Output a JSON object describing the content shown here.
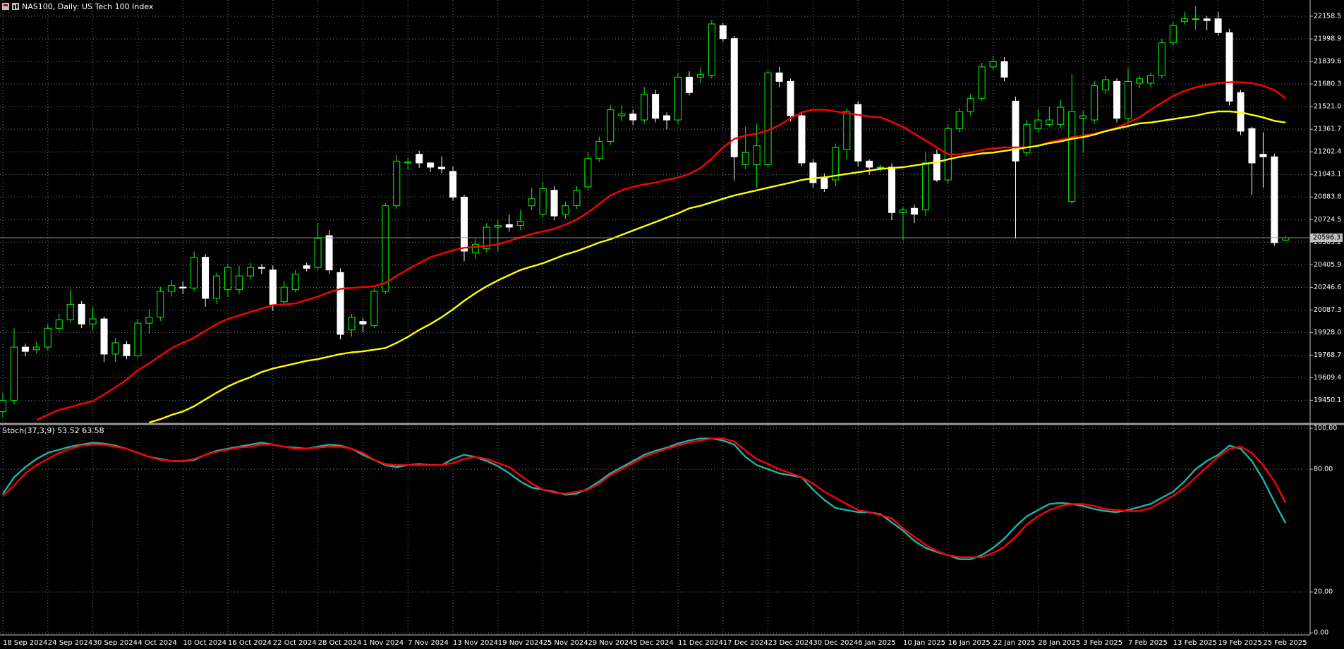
{
  "chart_data": [
    {
      "type": "candlestick",
      "title": "NAS100, Daily: US Tech 100 Index",
      "current_price": 20596.3,
      "up_color": "#00ff00",
      "down_color": "#ffffff",
      "grid": true,
      "grid_color": "#6e7b8b",
      "categories": [
        "18 Sep 2024",
        null,
        null,
        null,
        "24 Sep 2024",
        null,
        null,
        null,
        "30 Sep 2024",
        null,
        null,
        null,
        "4 Oct 2024",
        null,
        null,
        null,
        "10 Oct 2024",
        null,
        null,
        null,
        "16 Oct 2024",
        null,
        null,
        null,
        "22 Oct 2024",
        null,
        null,
        null,
        "28 Oct 2024",
        null,
        null,
        null,
        "1 Nov 2024",
        null,
        null,
        null,
        "7 Nov 2024",
        null,
        null,
        null,
        "13 Nov 2024",
        null,
        null,
        null,
        "19 Nov 2024",
        null,
        null,
        null,
        "25 Nov 2024",
        null,
        null,
        null,
        "29 Nov 2024",
        null,
        null,
        null,
        "5 Dec 2024",
        null,
        null,
        null,
        "11 Dec 2024",
        null,
        null,
        null,
        "17 Dec 2024",
        null,
        null,
        null,
        "23 Dec 2024",
        null,
        null,
        null,
        "30 Dec 2024",
        null,
        null,
        null,
        "6 Jan 2025",
        null,
        null,
        null,
        "10 Jan 2025",
        null,
        null,
        null,
        "16 Jan 2025",
        null,
        null,
        null,
        "22 Jan 2025",
        null,
        null,
        null,
        "28 Jan 2025",
        null,
        null,
        null,
        "3 Feb 2025",
        null,
        null,
        null,
        "7 Feb 2025",
        null,
        null,
        null,
        "13 Feb 2025",
        null,
        null,
        null,
        "19 Feb 2025",
        null,
        null,
        null,
        "25 Feb 2025",
        null,
        null
      ],
      "open": [
        19371,
        19450,
        19825,
        19807,
        19825,
        19958,
        20018,
        20127,
        19988,
        20024,
        19776,
        19843,
        19764,
        19994,
        20036,
        20218,
        20248,
        20242,
        20459,
        20169,
        20230,
        20230,
        20327,
        20387,
        20369,
        20145,
        20230,
        20399,
        20387,
        20611,
        20351,
        19946,
        20006,
        19976,
        20218,
        20822,
        21124,
        21185,
        21124,
        21094,
        21064,
        20883,
        20490,
        20520,
        20671,
        20689,
        20683,
        20822,
        20762,
        20931,
        20762,
        20822,
        20955,
        21155,
        21276,
        21457,
        21469,
        21427,
        21608,
        21457,
        21427,
        21729,
        21729,
        21741,
        22092,
        22001,
        21112,
        21112,
        21112,
        21759,
        21699,
        21457,
        21124,
        21016,
        21004,
        21218,
        21536,
        21137,
        21094,
        21094,
        20774,
        20804,
        20792,
        21185,
        21004,
        21366,
        21487,
        21578,
        21801,
        21838,
        21560,
        21197,
        21366,
        21396,
        21396,
        20852,
        21439,
        21427,
        21638,
        21699,
        21439,
        21687,
        21687,
        21741,
        21971,
        22122,
        22140,
        22140,
        22140,
        22043,
        21620,
        21366,
        21185,
        21167,
        20580
      ],
      "high": [
        19500,
        19958,
        19850,
        19860,
        19990,
        20060,
        20230,
        20150,
        20110,
        20040,
        19890,
        19870,
        20020,
        20090,
        20250,
        20300,
        20290,
        20500,
        20480,
        20350,
        20410,
        20400,
        20420,
        20410,
        20400,
        20290,
        20370,
        20420,
        20700,
        20650,
        20380,
        20060,
        20030,
        20240,
        20840,
        21180,
        21160,
        21210,
        21130,
        21170,
        21100,
        20900,
        20590,
        20700,
        20720,
        20760,
        20790,
        20950,
        20990,
        20960,
        20850,
        20960,
        21200,
        21310,
        21530,
        21530,
        21500,
        21660,
        21640,
        21480,
        21760,
        21770,
        21800,
        22130,
        22110,
        22020,
        21380,
        21400,
        21780,
        21800,
        21720,
        21480,
        21150,
        21050,
        21260,
        21510,
        21560,
        21150,
        21110,
        21120,
        20810,
        20830,
        21200,
        21220,
        21390,
        21510,
        21610,
        21830,
        21880,
        21870,
        21590,
        21430,
        21500,
        21520,
        21570,
        21750,
        21490,
        21700,
        21740,
        21720,
        21790,
        21740,
        21760,
        22000,
        22120,
        22190,
        22230,
        22160,
        22190,
        22070,
        21640,
        21380,
        21340,
        21190,
        20610
      ],
      "low": [
        19330,
        19420,
        19760,
        19780,
        19800,
        19930,
        20000,
        19960,
        19950,
        19720,
        19720,
        19740,
        19750,
        19920,
        20010,
        20180,
        20200,
        20220,
        20110,
        20130,
        20180,
        20200,
        20300,
        20340,
        20080,
        20120,
        20210,
        20360,
        20370,
        20340,
        19880,
        19900,
        19930,
        19960,
        20200,
        20800,
        21080,
        21090,
        21060,
        21050,
        20860,
        20430,
        20450,
        20490,
        20500,
        20640,
        20650,
        20790,
        20740,
        20720,
        20730,
        20800,
        20930,
        21130,
        21250,
        21420,
        21390,
        21400,
        21410,
        21360,
        21400,
        21600,
        21690,
        21720,
        21980,
        21000,
        21080,
        20950,
        21090,
        21660,
        21420,
        21100,
        20950,
        20920,
        20960,
        21150,
        21100,
        21040,
        21060,
        20720,
        20580,
        20700,
        20750,
        20990,
        20980,
        21340,
        21460,
        21560,
        21780,
        21700,
        20590,
        21170,
        21340,
        21380,
        21370,
        20830,
        21200,
        21400,
        21610,
        21410,
        21400,
        21650,
        21660,
        21720,
        21950,
        22100,
        22060,
        22060,
        22020,
        21530,
        21320,
        20900,
        20950,
        20540,
        20570
      ],
      "close": [
        19450,
        19825,
        19795,
        19825,
        19958,
        20018,
        20127,
        19988,
        20024,
        19776,
        19855,
        19764,
        19994,
        20036,
        20218,
        20260,
        20242,
        20459,
        20169,
        20327,
        20387,
        20327,
        20387,
        20381,
        20127,
        20248,
        20339,
        20381,
        20592,
        20369,
        19915,
        20036,
        19988,
        20218,
        20822,
        21137,
        21130,
        21124,
        21094,
        21082,
        20883,
        20502,
        20550,
        20671,
        20683,
        20671,
        20713,
        20871,
        20943,
        20750,
        20822,
        20931,
        21155,
        21276,
        21499,
        21469,
        21427,
        21608,
        21439,
        21427,
        21729,
        21620,
        21747,
        22104,
        22001,
        21167,
        21197,
        21245,
        21759,
        21699,
        21457,
        21124,
        20985,
        20943,
        21233,
        21487,
        21137,
        21094,
        21094,
        20774,
        20792,
        20762,
        21124,
        21004,
        21366,
        21487,
        21578,
        21801,
        21838,
        21729,
        21137,
        21396,
        21427,
        21427,
        21517,
        21487,
        21457,
        21668,
        21711,
        21439,
        21699,
        21717,
        21741,
        21971,
        22092,
        22140,
        22140,
        22128,
        22043,
        21560,
        21348,
        21124,
        21167,
        20562,
        20596.3
      ],
      "series": [
        {
          "color": "#ff0000",
          "values": [
            null,
            null,
            null,
            19311,
            19347,
            19383,
            19402,
            19426,
            19444,
            19492,
            19541,
            19595,
            19662,
            19710,
            19764,
            19819,
            19855,
            19891,
            19940,
            19988,
            20024,
            20048,
            20073,
            20097,
            20121,
            20127,
            20133,
            20157,
            20181,
            20212,
            20236,
            20242,
            20248,
            20254,
            20278,
            20327,
            20375,
            20417,
            20459,
            20484,
            20508,
            20526,
            20532,
            20538,
            20550,
            20574,
            20599,
            20623,
            20641,
            20659,
            20689,
            20725,
            20774,
            20834,
            20895,
            20931,
            20955,
            20973,
            20985,
            21004,
            21022,
            21046,
            21088,
            21155,
            21233,
            21294,
            21318,
            21330,
            21354,
            21390,
            21439,
            21481,
            21499,
            21499,
            21487,
            21475,
            21463,
            21451,
            21445,
            21415,
            21378,
            21330,
            21282,
            21233,
            21185,
            21185,
            21197,
            21215,
            21227,
            21233,
            21233,
            21233,
            21245,
            21270,
            21288,
            21306,
            21318,
            21330,
            21348,
            21372,
            21409,
            21445,
            21499,
            21548,
            21596,
            21632,
            21656,
            21675,
            21687,
            21693,
            21693,
            21687,
            21668,
            21638,
            21578
          ]
        },
        {
          "color": "#ffff00",
          "values": [
            null,
            null,
            null,
            null,
            null,
            null,
            null,
            null,
            null,
            null,
            null,
            null,
            null,
            19293,
            19317,
            19347,
            19371,
            19408,
            19456,
            19504,
            19547,
            19583,
            19613,
            19649,
            19674,
            19692,
            19710,
            19728,
            19740,
            19758,
            19776,
            19788,
            19795,
            19807,
            19819,
            19855,
            19897,
            19946,
            19988,
            20036,
            20091,
            20151,
            20206,
            20254,
            20296,
            20333,
            20369,
            20393,
            20417,
            20447,
            20478,
            20502,
            20532,
            20562,
            20586,
            20617,
            20647,
            20677,
            20707,
            20738,
            20768,
            20804,
            20822,
            20846,
            20871,
            20895,
            20913,
            20931,
            20949,
            20967,
            20985,
            21004,
            21016,
            21022,
            21034,
            21046,
            21058,
            21070,
            21082,
            21088,
            21094,
            21106,
            21118,
            21130,
            21149,
            21167,
            21179,
            21191,
            21197,
            21209,
            21221,
            21233,
            21245,
            21263,
            21276,
            21294,
            21306,
            21324,
            21348,
            21366,
            21384,
            21403,
            21409,
            21421,
            21433,
            21445,
            21457,
            21475,
            21487,
            21487,
            21481,
            21463,
            21445,
            21421,
            21409
          ]
        }
      ],
      "ylim": [
        19293,
        22273
      ],
      "yticks": [
        22158.5,
        21998.9,
        21839.6,
        21680.3,
        {
          "value": 21521.0,
          "label": "21521.0"
        },
        21361.7,
        21202.4,
        21043.1,
        20883.8,
        20724.5,
        20565.2,
        20405.9,
        20246.6,
        20087.3,
        {
          "value": 19928.0,
          "label": "19928.0"
        },
        19768.7,
        19609.4,
        19450.1
      ]
    },
    {
      "type": "line",
      "title": "Stoch(37,3,9) 53.52 63.58",
      "grid": true,
      "series": [
        {
          "color": "#20b2aa",
          "values": [
            68,
            76,
            81,
            85,
            88,
            89.5,
            91,
            92,
            93,
            92.5,
            91.5,
            90,
            88,
            86,
            85,
            84,
            84,
            84.5,
            87,
            89,
            90,
            91,
            92,
            93,
            92,
            91,
            90.5,
            90,
            91,
            92,
            91.5,
            90,
            87,
            84.5,
            82,
            81,
            82,
            82.5,
            82,
            82,
            85,
            87,
            86,
            84,
            81.5,
            78,
            74,
            71,
            70,
            69,
            67.5,
            68,
            70.5,
            74,
            78,
            81,
            84,
            87,
            89,
            90.5,
            92.5,
            94,
            95,
            95,
            94,
            92,
            86,
            82,
            80,
            78,
            77,
            76,
            70,
            65,
            61,
            60,
            59,
            59,
            58,
            54,
            50,
            45,
            41.5,
            39.5,
            38,
            36,
            36,
            38,
            41.5,
            46,
            52,
            57,
            60,
            63,
            63.5,
            63,
            62,
            60.5,
            59.5,
            59,
            60,
            61.5,
            63,
            66,
            69,
            74,
            80,
            84,
            87,
            91.5,
            90,
            84,
            75,
            64,
            53.52
          ]
        },
        {
          "color": "#ff0000",
          "values": [
            67,
            72,
            78,
            82,
            85,
            88,
            90,
            91.5,
            92,
            92,
            91,
            90,
            88,
            86,
            84.5,
            84,
            84,
            85,
            87,
            88.5,
            89.5,
            90.5,
            91,
            92,
            92,
            91,
            90,
            90,
            90.5,
            91,
            91,
            90,
            88,
            84.5,
            82.5,
            82,
            82,
            82,
            82,
            82,
            83,
            85,
            86,
            85,
            83,
            81,
            77,
            73,
            70,
            68.5,
            68,
            69,
            70,
            73,
            77,
            80,
            83,
            86,
            88,
            90,
            91.5,
            93,
            94,
            95,
            95,
            93.5,
            89,
            85,
            82.5,
            80,
            78,
            76,
            73,
            69,
            66,
            63,
            60,
            59,
            57.5,
            56,
            51,
            47,
            43,
            40,
            38,
            37,
            37,
            37,
            39,
            42,
            47,
            53,
            57,
            60,
            62,
            63,
            63,
            62,
            60.5,
            60,
            59.5,
            59.5,
            61,
            64,
            67,
            71,
            76,
            81,
            86,
            90,
            91,
            88,
            82,
            74,
            63.58
          ]
        }
      ],
      "ylim": [
        -1,
        101.4
      ],
      "yticks": [
        {
          "value": 100,
          "label": "100.00"
        },
        {
          "value": 80,
          "label": "80.00"
        },
        {
          "value": 20,
          "label": "20.00"
        },
        {
          "value": 0,
          "label": "0.00"
        }
      ]
    }
  ]
}
